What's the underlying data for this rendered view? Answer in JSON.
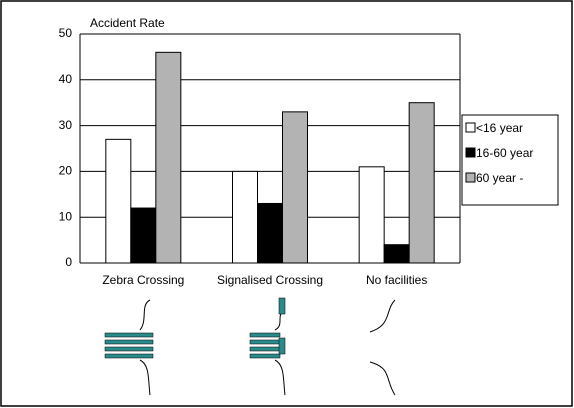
{
  "chart_data": {
    "type": "bar",
    "y_label": "Accident Rate",
    "categories": [
      "Zebra Crossing",
      "Signalised Crossing",
      "No facilities"
    ],
    "series": [
      {
        "name": "<16 year",
        "color": "#ffffff",
        "values": [
          27,
          20,
          21
        ]
      },
      {
        "name": "16-60 year",
        "color": "#000000",
        "values": [
          12,
          13,
          4
        ]
      },
      {
        "name": "60 year -",
        "color": "#b3b3b3",
        "values": [
          46,
          33,
          35
        ]
      }
    ],
    "ylim": [
      0,
      50
    ],
    "yticks": [
      0,
      10,
      20,
      30,
      40,
      50
    ],
    "grid": true,
    "legend": "right"
  }
}
